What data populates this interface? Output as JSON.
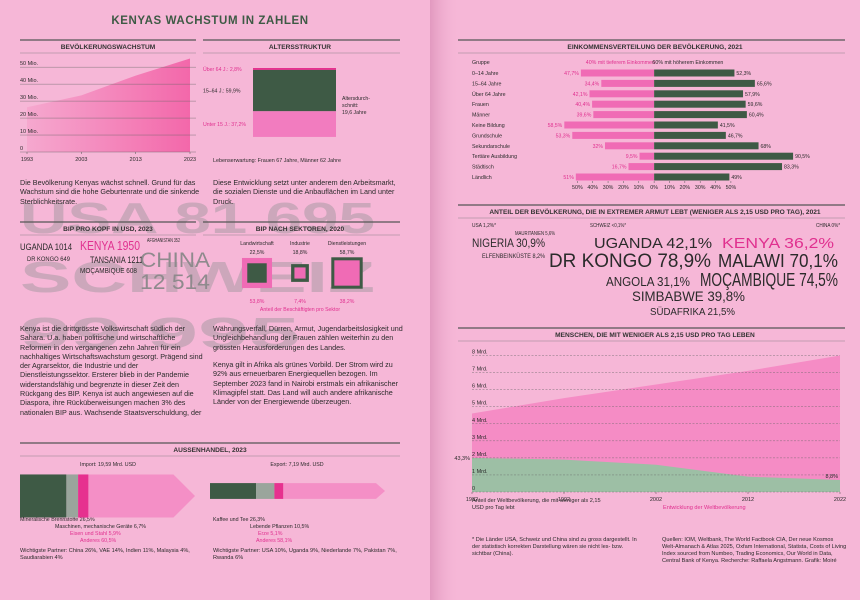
{
  "title": "KENYAS WACHSTUM IN ZAHLEN",
  "background_text": [
    "USA 81 695",
    "SCHWEIZ",
    "99 995"
  ],
  "paragraphs": [
    "Die Bevölkerung Kenyas wächst schnell. Grund für das Wachstum sind die hohe Geburtenrate und die sinkende Sterblichkeitsrate.",
    "Diese Entwicklung setzt unter anderem den Arbeitsmarkt, die sozialen Dienste und die Anbauflächen im Land unter Druck.",
    "Kenya ist die drittgrösste Volkswirtschaft südlich der Sahara. U.a. haben politische und wirtschaftliche Reformen in den vergangenen zehn Jahren für ein nachhaltiges Wirtschaftswachstum gesorgt. Prägend sind der Agrarsektor, die Industrie und der Dienstleistungssektor. Ersterer blieb in der Pandemie widerstandsfähig und begrenzte in dieser Zeit den Rückgang des BIP. Kenya ist auch angewiesen auf die Diaspora, ihre Rücküberweisungen machen 3% des nationalen BIP aus. Wachsende Staatsverschuldung, der",
    "Währungsverfall, Dürren, Armut, Jugendarbeitslosigkeit und Ungleichbehandlung der Frauen zählen weiterhin zu den grössten Herausforderungen des Landes.",
    "Kenya gilt in Afrika als grünes Vorbild. Der Strom wird zu 92% aus erneuerbaren Energiequellen bezogen. Im September 2023 fand in Nairobi erstmals ein afrikanischer Klimagipfel statt. Das Land will auch andere afrikanische Länder von der Energiewende überzeugen."
  ],
  "gdp_per_capita": {
    "title": "BIP PRO KOPF IN USD, 2023",
    "entries": [
      "UGANDA 1014",
      "KENYA 1950",
      "AFGHANISTAN 352",
      "DR KONGO 649",
      "TANSANIA 1211",
      "MOÇAMBIQUE 608",
      "CHINA",
      "12 514"
    ]
  },
  "trade_title": "AUSSENHANDEL, 2023",
  "extreme_poverty": {
    "title": "ANTEIL DER BEVÖLKERUNG, DIE IN EXTREMER ARMUT LEBT  (WENIGER ALS 2,15 USD PRO TAG), 2021",
    "entries": [
      "USA 1,2%*",
      "SCHWEIZ <0,1%*",
      "CHINA 0%*",
      "MAURITANIEN 5,6%",
      "NIGERIA 30,9%",
      "ELFENBEINKÜSTE 8,2%",
      "UGANDA 42,1%",
      "KENYA 36,2%",
      "DR KONGO 78,9%",
      "MALAWI 70,1%",
      "ANGOLA 31,1%",
      "MOÇAMBIQUE 74,5%",
      "SIMBABWE 39,8%",
      "SÜDAFRIKA 21,5%"
    ]
  },
  "footnote": "* Die Länder USA, Schweiz und China sind zu gross dargestellt. In der statistisch korrekten Darstellung wären sie nicht les- bzw. sichtbar (China).",
  "sources": "Quellen: IOM, Weltbank, The World Factbook CIA, Der neue Kosmos Welt-Almanach & Atlas 2025, Oxfam International, Statista, Costs of Living Index sourced from Numbeo, Trading Economics, Our World in Data, Central Bank of Kenya. Recherche: Raffaela Angstmann. Grafik: Moiré",
  "chart_data": [
    {
      "type": "area",
      "title": "BEVÖLKERUNGSWACHSTUM",
      "x": [
        1993,
        2003,
        2013,
        2023
      ],
      "values": [
        26.4,
        33.4,
        45.0,
        55.1
      ],
      "color": "#f2549f",
      "xlim": [
        1993,
        2023
      ],
      "xticks": [
        1993,
        2003,
        2013,
        2023
      ],
      "ylim": [
        0,
        56
      ],
      "yticks": [
        0,
        {
          "value": 10,
          "label": "10 Mio."
        },
        {
          "value": 20,
          "label": "20 Mio."
        },
        {
          "value": 30,
          "label": "30 Mio."
        },
        {
          "value": 40,
          "label": "40 Mio."
        },
        {
          "value": 50,
          "label": "50 Mio."
        }
      ],
      "grid": true
    },
    {
      "type": "stacked-bar",
      "title": "ALTERSSTRUKTUR",
      "labels": [
        "Über 64 J.: 2,8%",
        "15–64 J.: 59,9%",
        "Unter 15 J.: 37,2%"
      ],
      "values": [
        2.8,
        59.9,
        37.2
      ],
      "colors": [
        "#e6318f",
        "#3e5a45",
        "#f27cbf"
      ],
      "annotation_lines": [
        "Altersdurch-",
        "schnitt:",
        "19,6 Jahre"
      ],
      "note": "Lebenserwartung: Frauen 67 Jahre, Männer 62 Jahre"
    },
    {
      "type": "nested-squares",
      "title": "BIP NACH SEKTOREN, 2020",
      "categories": [
        "Landwirtschaft",
        "Industrie",
        "Dienstleistungen"
      ],
      "values": [
        22.5,
        18.8,
        58.7
      ],
      "value_labels": [
        "22,5%",
        "18,8%",
        "58,7%"
      ],
      "color": "#3e5a45",
      "employment": {
        "name": "Anteil der Beschäftigten pro Sektor",
        "values": [
          53.8,
          7.4,
          38.2
        ],
        "value_labels": [
          "53,8%",
          "7,4%",
          "38,2%"
        ],
        "color": "#f06bb5"
      }
    },
    {
      "type": "arrow-bar",
      "label": "Import: 19,59 Mrd. USD",
      "value": 19.59,
      "labels": [
        "Mineralische Brennstoffe 26,5%",
        "Maschinen, mechanische Geräte 6,7%",
        "Eisen und Stahl 5,9%",
        "Anderes 60,5%"
      ],
      "values": [
        26.5,
        6.7,
        5.9,
        60.5
      ],
      "colors": [
        "#3e5a45",
        "#9aa59c",
        "#e6318f",
        "#f48fc6"
      ],
      "partners": "Wichtigste Partner: China 26%, VAE 14%, Indien 11%, Malaysia 4%, Saudiarabien 4%"
    },
    {
      "type": "arrow-bar",
      "label": "Export: 7,19 Mrd. USD",
      "value": 7.19,
      "labels": [
        "Kaffee und Tee 26,3%",
        "Lebende Pflanzen 10,5%",
        "Erze 5,1%",
        "Anderes 58,1%"
      ],
      "values": [
        26.3,
        10.5,
        5.1,
        58.1
      ],
      "colors": [
        "#3e5a45",
        "#9aa59c",
        "#e6318f",
        "#f48fc6"
      ],
      "partners": "Wichtigste Partner: USA 10%, Uganda 9%, Niederlande 7%, Pakistan 7%, Rwanda 6%"
    },
    {
      "type": "diverging-bar",
      "title": "EINKOMMENSVERTEILUNG DER BEVÖLKERUNG, 2021",
      "category_header": "Gruppe",
      "categories": [
        "0–14 Jahre",
        "15–64 Jahre",
        "Über 64 Jahre",
        "Frauen",
        "Männer",
        "Keine Bildung",
        "Grundschule",
        "Sekundarschule",
        "Tertiäre Ausbildung",
        "Städtisch",
        "Ländlich"
      ],
      "series": [
        {
          "name": "40% mit tieferem Einkommen",
          "color": "#f06bb5",
          "values": [
            47.7,
            34.4,
            42.1,
            40.4,
            39.6,
            58.5,
            53.3,
            32,
            9.5,
            16.7,
            51
          ],
          "value_labels": [
            "47,7%",
            "34,4%",
            "42,1%",
            "40,4%",
            "39,6%",
            "58,5%",
            "53,3%",
            "32%",
            "9,5%",
            "16,7%",
            "51%"
          ]
        },
        {
          "name": "60% mit höherem Einkommen",
          "color": "#3e5a45",
          "values": [
            52.3,
            65.6,
            57.9,
            59.6,
            60.4,
            41.5,
            46.7,
            68,
            90.5,
            83.3,
            49
          ],
          "value_labels": [
            "52,3%",
            "65,6%",
            "57,9%",
            "59,6%",
            "60,4%",
            "41,5%",
            "46,7%",
            "68%",
            "90,5%",
            "83,3%",
            "49%"
          ]
        }
      ],
      "xlim": [
        -60,
        95
      ],
      "xticks": [
        {
          "value": -50,
          "label": "50%"
        },
        {
          "value": -40,
          "label": "40%"
        },
        {
          "value": -30,
          "label": "30%"
        },
        {
          "value": -20,
          "label": "20%"
        },
        {
          "value": -10,
          "label": "10%"
        },
        {
          "value": 0,
          "label": "0%"
        },
        {
          "value": 10,
          "label": "10%"
        },
        {
          "value": 20,
          "label": "20%"
        },
        {
          "value": 30,
          "label": "30%"
        },
        {
          "value": 40,
          "label": "40%"
        },
        {
          "value": 50,
          "label": "50%"
        }
      ]
    },
    {
      "type": "area",
      "title": "MENSCHEN, DIE MIT WENIGER ALS 2,15 USD PRO TAG LEBEN",
      "x": [
        1982,
        1992,
        2002,
        2012,
        2022
      ],
      "series": [
        {
          "name": "Entwicklung der Weltbevölkerung",
          "color": "#f58cc5",
          "values": [
            4.6,
            5.5,
            6.3,
            7.1,
            8.0
          ]
        },
        {
          "name": "Anteil der Weltbevölkerung, die mit weniger als 2,15 USD pro Tag lebt",
          "color": "#9dbfa5",
          "values": [
            2.0,
            1.9,
            1.6,
            0.9,
            0.7
          ],
          "share_labels": [
            "43,3%",
            "8,8%"
          ]
        }
      ],
      "xlim": [
        1982,
        2022
      ],
      "xticks": [
        1982,
        1992,
        2002,
        2012,
        2022
      ],
      "ylim": [
        0,
        8.5
      ],
      "yticks": [
        0,
        {
          "value": 1,
          "label": "1 Mrd."
        },
        {
          "value": 2,
          "label": "2 Mrd."
        },
        {
          "value": 3,
          "label": "3 Mrd."
        },
        {
          "value": 4,
          "label": "4 Mrd."
        },
        {
          "value": 5,
          "label": "5 Mrd."
        },
        {
          "value": 6,
          "label": "6 Mrd."
        },
        {
          "value": 7,
          "label": "7 Mrd."
        },
        {
          "value": 8,
          "label": "8 Mrd."
        }
      ],
      "grid": true
    }
  ]
}
